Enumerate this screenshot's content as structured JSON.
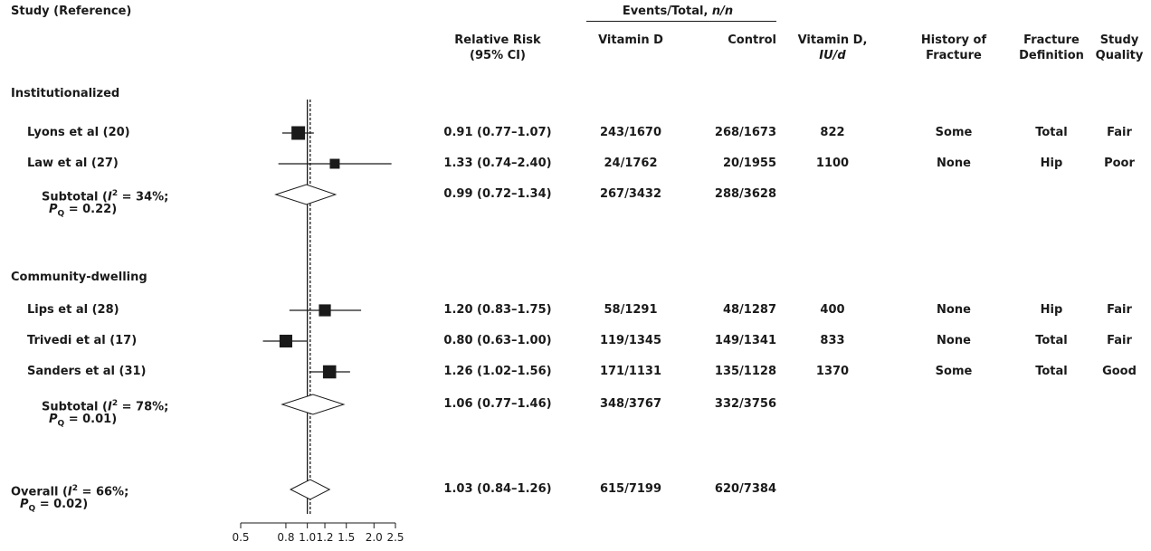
{
  "header": {
    "study": "Study (Reference)",
    "rr_line1": "Relative Risk",
    "rr_line2": "(95% CI)",
    "events": "Events/Total, ",
    "events_nn": "n/n",
    "vitd": "Vitamin D",
    "control": "Control",
    "dose_line1": "Vitamin D,",
    "dose_line2": "IU/d",
    "hist_line1": "History of",
    "hist_line2": "Fracture",
    "fdef_line1": "Fracture",
    "fdef_line2": "Definition",
    "qual_line1": "Study",
    "qual_line2": "Quality"
  },
  "sections": {
    "institutionalized": "Institutionalized",
    "community": "Community-dwelling"
  },
  "rows": [
    {
      "study": "Lyons et al (20)",
      "rr": "0.91 (0.77–1.07)",
      "vitd": "243/1670",
      "control": "268/1673",
      "dose": "822",
      "history": "Some",
      "definition": "Total",
      "quality": "Fair"
    },
    {
      "study": "Law et al (27)",
      "rr": "1.33 (0.74–2.40)",
      "vitd": "24/1762",
      "control": "20/1955",
      "dose": "1100",
      "history": "None",
      "definition": "Hip",
      "quality": "Poor"
    },
    {
      "study_a": "Subtotal (",
      "study_i": "I",
      "study_sup": "2",
      "study_b": " = 34%;",
      "study_p": "P",
      "study_q": "Q",
      "study_c": " = 0.22)",
      "rr": "0.99 (0.72–1.34)",
      "vitd": "267/3432",
      "control": "288/3628"
    },
    {
      "study": "Lips et al (28)",
      "rr": "1.20 (0.83–1.75)",
      "vitd": "58/1291",
      "control": "48/1287",
      "dose": "400",
      "history": "None",
      "definition": "Hip",
      "quality": "Fair"
    },
    {
      "study": "Trivedi et al (17)",
      "rr": "0.80 (0.63–1.00)",
      "vitd": "119/1345",
      "control": "149/1341",
      "dose": "833",
      "history": "None",
      "definition": "Total",
      "quality": "Fair"
    },
    {
      "study": "Sanders et al (31)",
      "rr": "1.26 (1.02–1.56)",
      "vitd": "171/1131",
      "control": "135/1128",
      "dose": "1370",
      "history": "Some",
      "definition": "Total",
      "quality": "Good"
    },
    {
      "study_a": "Subtotal (",
      "study_i": "I",
      "study_sup": "2",
      "study_b": " = 78%;",
      "study_p": "P",
      "study_q": "Q",
      "study_c": " = 0.01)",
      "rr": "1.06 (0.77–1.46)",
      "vitd": "348/3767",
      "control": "332/3756"
    },
    {
      "study_a": "Overall (",
      "study_i": "I",
      "study_sup": "2",
      "study_b": " = 66%;",
      "study_p": "P",
      "study_q": "Q",
      "study_c": " = 0.02)",
      "rr": "1.03 (0.84–1.26)",
      "vitd": "615/7199",
      "control": "620/7384"
    }
  ],
  "chart_data": {
    "type": "scatter",
    "xscale": "log",
    "xlim": [
      0.5,
      2.5
    ],
    "xticks": [
      "0.5",
      "0.8",
      "1.0",
      "1.2",
      "1.5",
      "2.0",
      "2.5"
    ],
    "xtick_values": [
      0.5,
      0.8,
      1.0,
      1.2,
      1.5,
      2.0,
      2.5
    ],
    "reference_line": 1.0,
    "overall_estimate_line": 1.03,
    "studies": [
      {
        "name": "Lyons et al (20)",
        "rr": 0.91,
        "lo": 0.77,
        "hi": 1.07,
        "kind": "square",
        "weight": 1.0
      },
      {
        "name": "Law et al (27)",
        "rr": 1.33,
        "lo": 0.74,
        "hi": 2.4,
        "kind": "square",
        "weight": 0.55
      },
      {
        "name": "Subtotal Institutionalized",
        "rr": 0.99,
        "lo": 0.72,
        "hi": 1.34,
        "kind": "diamond"
      },
      {
        "name": "Lips et al (28)",
        "rr": 1.2,
        "lo": 0.83,
        "hi": 1.75,
        "kind": "square",
        "weight": 0.8
      },
      {
        "name": "Trivedi et al (17)",
        "rr": 0.8,
        "lo": 0.63,
        "hi": 1.0,
        "kind": "square",
        "weight": 0.9
      },
      {
        "name": "Sanders et al (31)",
        "rr": 1.26,
        "lo": 1.02,
        "hi": 1.56,
        "kind": "square",
        "weight": 0.95
      },
      {
        "name": "Subtotal Community-dwelling",
        "rr": 1.06,
        "lo": 0.77,
        "hi": 1.46,
        "kind": "diamond"
      },
      {
        "name": "Overall",
        "rr": 1.03,
        "lo": 0.84,
        "hi": 1.26,
        "kind": "diamond"
      }
    ]
  }
}
